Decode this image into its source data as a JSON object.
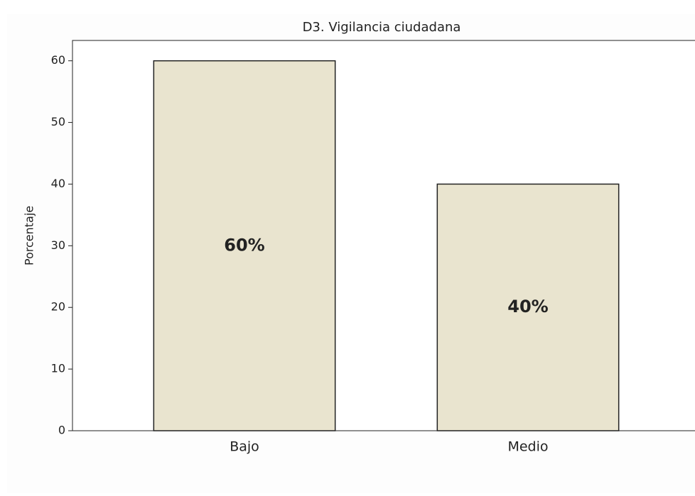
{
  "chart_data": {
    "type": "bar",
    "title": "D3. Vigilancia ciudadana",
    "y_label": "Porcentaje",
    "categories": [
      "Bajo",
      "Medio"
    ],
    "values": [
      60,
      40
    ],
    "value_labels": [
      "60%",
      "40%"
    ],
    "color": "#e9e4cf",
    "ylim": [
      0,
      63.3
    ],
    "yticks": [
      0,
      10,
      20,
      30,
      40,
      50,
      60
    ],
    "grid": false
  }
}
